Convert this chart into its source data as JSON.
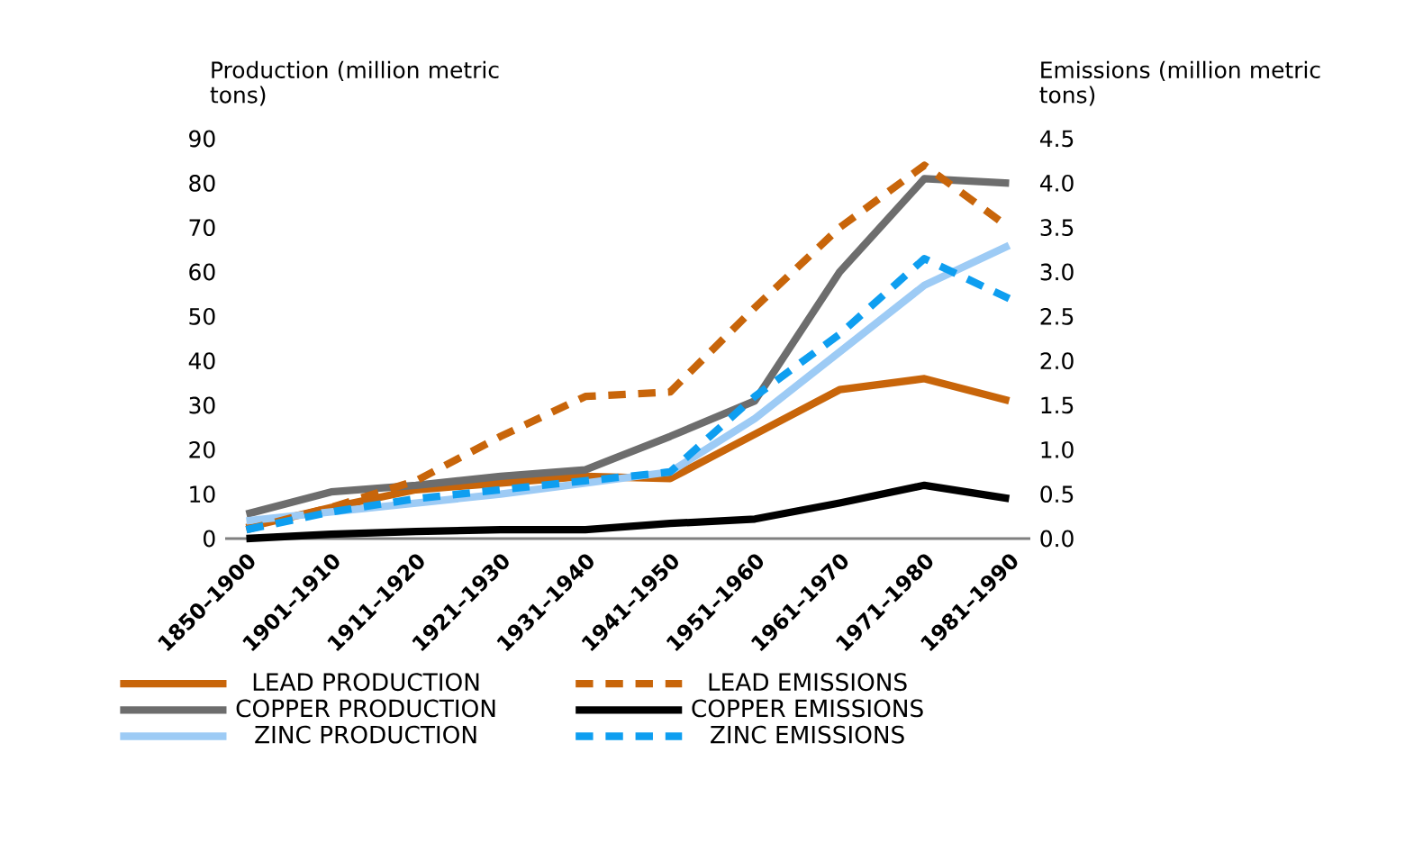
{
  "chart_data": {
    "type": "line",
    "categories": [
      "1850–1900",
      "1901–1910",
      "1911–1920",
      "1921–1930",
      "1931–1940",
      "1941–1950",
      "1951–1960",
      "1961–1970",
      "1971–1980",
      "1981–1990"
    ],
    "ylabel": "Production (million metric tons)",
    "y2label": "Emissions (million metric tons)",
    "ylim": [
      0,
      90
    ],
    "yticks": [
      0,
      10,
      20,
      30,
      40,
      50,
      60,
      70,
      80,
      90
    ],
    "y2lim": [
      0,
      4.5
    ],
    "y2ticks": [
      {
        "value": 0,
        "label": "0.0"
      },
      0.5,
      {
        "value": 1,
        "label": "1.0"
      },
      1.5,
      {
        "value": 2,
        "label": "2.0"
      },
      2.5,
      {
        "value": 3,
        "label": "3.0"
      },
      3.5,
      {
        "value": 4,
        "label": "4.0"
      },
      4.5
    ],
    "legend": "bottom",
    "series": [
      {
        "name": "LEAD PRODUCTION",
        "color": "#c8650a",
        "values": [
          2.5,
          7,
          11,
          12.5,
          14,
          13.5,
          23.5,
          33.5,
          36,
          31
        ]
      },
      {
        "name": "LEAD EMISSIONS",
        "color": "#c8650a",
        "axis": "y2",
        "line_style": "dashed",
        "values": [
          0.1,
          0.35,
          0.65,
          1.15,
          1.6,
          1.65,
          2.6,
          3.5,
          4.2,
          3.5
        ]
      },
      {
        "name": "COPPER PRODUCTION",
        "color": "#6d6d6d",
        "values": [
          5.5,
          10.5,
          12,
          14,
          15.5,
          23,
          31,
          60,
          81,
          80
        ]
      },
      {
        "name": "COPPER EMISSIONS",
        "color": "#000000",
        "axis": "y2",
        "values": [
          0,
          0.05,
          0.08,
          0.1,
          0.1,
          0.17,
          0.22,
          0.4,
          0.6,
          0.45
        ]
      },
      {
        "name": "ZINC PRODUCTION",
        "color": "#9dcbf5",
        "values": [
          4,
          6,
          8,
          10,
          12.5,
          15,
          27,
          42,
          57,
          66
        ]
      },
      {
        "name": "ZINC EMISSIONS",
        "color": "#0e9ef0",
        "axis": "y2",
        "line_style": "dashed",
        "values": [
          0.1,
          0.3,
          0.45,
          0.55,
          0.65,
          0.75,
          1.6,
          2.3,
          3.15,
          2.7
        ]
      }
    ]
  }
}
